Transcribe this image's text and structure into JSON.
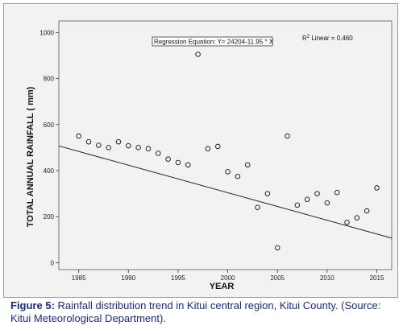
{
  "chart_data": {
    "type": "scatter",
    "xlabel": "YEAR",
    "ylabel": "TOTAL ANNUAL RAINFALL ( mm)",
    "xlim": [
      1983,
      2016.5
    ],
    "ylim": [
      -30,
      1050
    ],
    "x_ticks": [
      1985,
      1990,
      1995,
      2000,
      2005,
      2010,
      2015
    ],
    "y_ticks": [
      0,
      200,
      400,
      600,
      800,
      1000
    ],
    "grid": false,
    "points": [
      {
        "x": 1985,
        "y": 550
      },
      {
        "x": 1986,
        "y": 525
      },
      {
        "x": 1987,
        "y": 510
      },
      {
        "x": 1988,
        "y": 500
      },
      {
        "x": 1989,
        "y": 525
      },
      {
        "x": 1990,
        "y": 508
      },
      {
        "x": 1991,
        "y": 500
      },
      {
        "x": 1992,
        "y": 495
      },
      {
        "x": 1993,
        "y": 475
      },
      {
        "x": 1994,
        "y": 450
      },
      {
        "x": 1995,
        "y": 435
      },
      {
        "x": 1996,
        "y": 425
      },
      {
        "x": 1997,
        "y": 905
      },
      {
        "x": 1998,
        "y": 495
      },
      {
        "x": 1999,
        "y": 505
      },
      {
        "x": 2000,
        "y": 395
      },
      {
        "x": 2001,
        "y": 375
      },
      {
        "x": 2002,
        "y": 425
      },
      {
        "x": 2003,
        "y": 240
      },
      {
        "x": 2004,
        "y": 300
      },
      {
        "x": 2005,
        "y": 65
      },
      {
        "x": 2006,
        "y": 550
      },
      {
        "x": 2007,
        "y": 250
      },
      {
        "x": 2008,
        "y": 275
      },
      {
        "x": 2009,
        "y": 300
      },
      {
        "x": 2010,
        "y": 260
      },
      {
        "x": 2011,
        "y": 305
      },
      {
        "x": 2012,
        "y": 175
      },
      {
        "x": 2013,
        "y": 195
      },
      {
        "x": 2014,
        "y": 225
      },
      {
        "x": 2015,
        "y": 325
      }
    ],
    "trendline": {
      "intercept": 24204,
      "slope": -11.95
    },
    "regression_label": "Regression Equation:  Y= 24204-11.95 * X",
    "r2_label": {
      "base": "R",
      "sup": "2",
      "rest": " Linear = 0.460"
    }
  },
  "caption": {
    "lead": "Figure 5:",
    "text": " Rainfall distribution trend in Kitui central region, Kitui County. (Source: Kitui Meteorological Department)."
  },
  "colors": {
    "panel_bg": "#f2f2f2",
    "frame": "#9a9a9a",
    "caption_text": "#1a2a8a"
  }
}
